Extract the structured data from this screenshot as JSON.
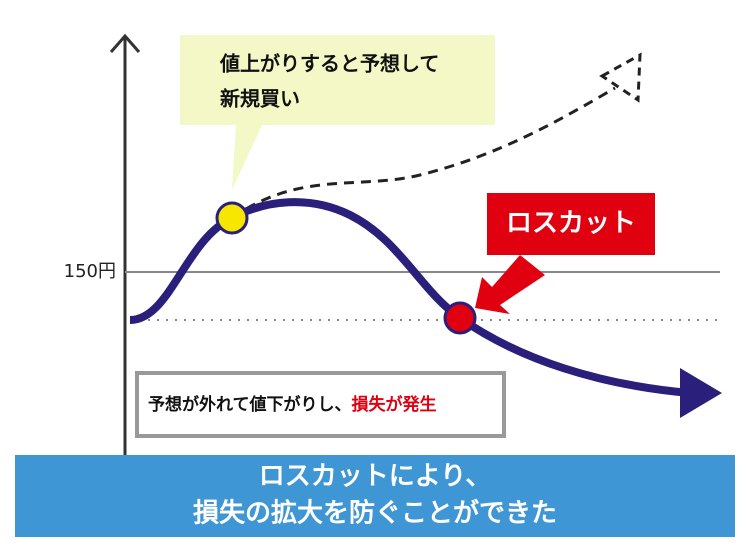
{
  "axis": {
    "price_label": "150円"
  },
  "callout": {
    "lines": [
      "値上がりすると予想して",
      "新規買い"
    ]
  },
  "stop_loss_label": "ロスカット",
  "note": {
    "text": "予想が外れて値下がりし、",
    "highlight": "損失が発生"
  },
  "banner": {
    "lines": [
      "ロスカットにより、",
      "損失の拡大を防ぐことができた"
    ]
  }
}
